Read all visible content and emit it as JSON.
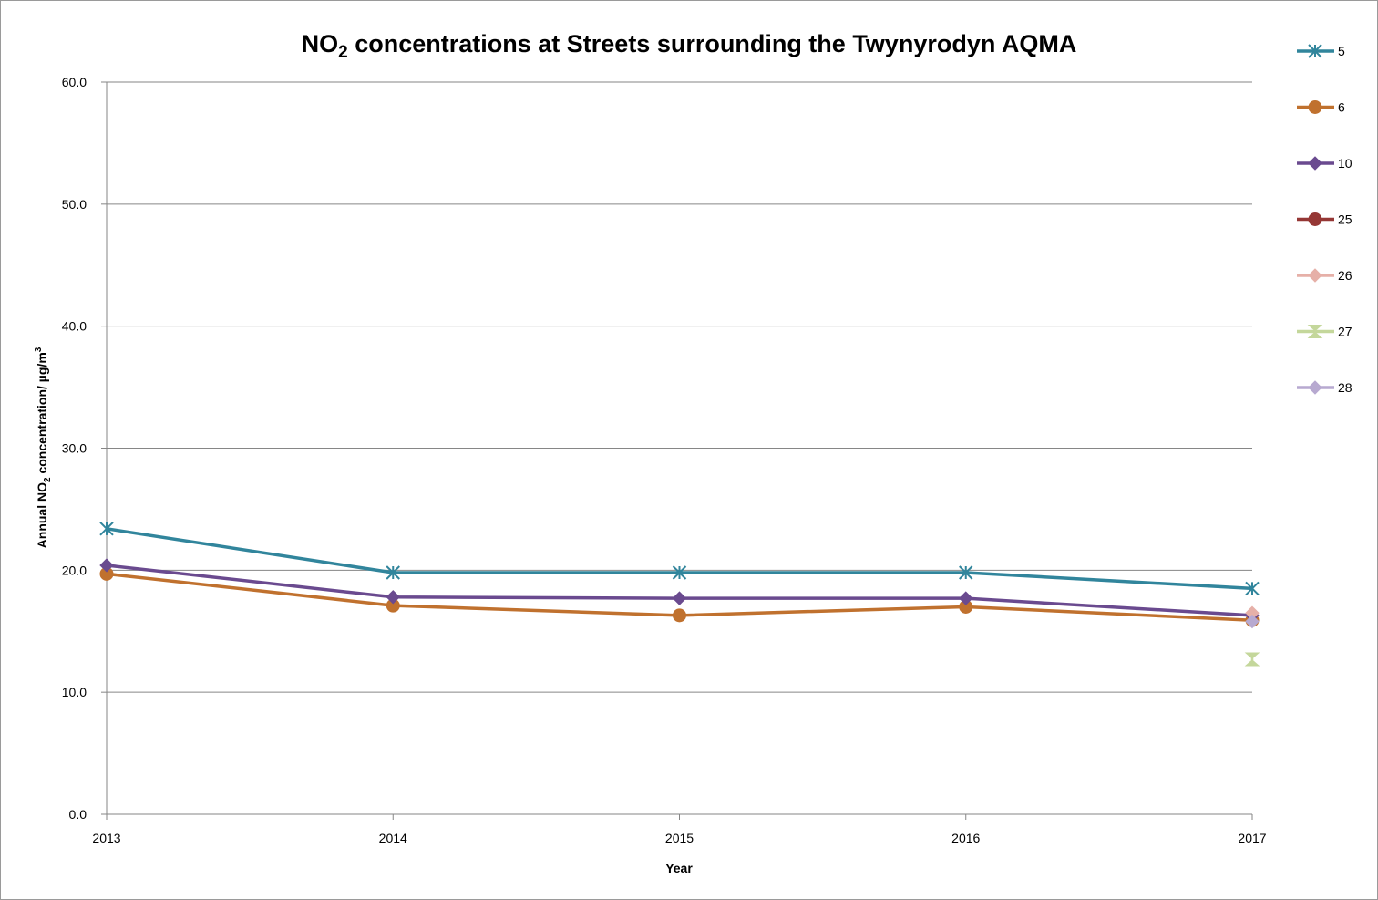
{
  "chart_data": {
    "type": "line",
    "title_main": "NO",
    "title_sub": "2",
    "title_rest": " concentrations at Streets surrounding the Twynyrodyn AQMA",
    "ylabel_main": "Annual NO",
    "ylabel_sub": "2",
    "ylabel_rest": " concentration/ µg/m",
    "ylabel_sup": "3",
    "xlabel": "Year",
    "x": [
      "2013",
      "2014",
      "2015",
      "2016",
      "2017"
    ],
    "y_ticks": [
      "0.0",
      "10.0",
      "20.0",
      "30.0",
      "40.0",
      "50.0",
      "60.0"
    ],
    "ylim": [
      0,
      60
    ],
    "grid": true,
    "legend_position": "right",
    "series": [
      {
        "name": "5",
        "color": "#31859C",
        "marker": "x-star",
        "values": [
          23.4,
          19.8,
          19.8,
          19.8,
          18.5
        ]
      },
      {
        "name": "6",
        "color": "#C0712E",
        "marker": "circle",
        "values": [
          19.7,
          17.1,
          16.3,
          17.0,
          15.9
        ]
      },
      {
        "name": "10",
        "color": "#6A4A8F",
        "marker": "diamond",
        "values": [
          20.4,
          17.8,
          17.7,
          17.7,
          16.3
        ]
      },
      {
        "name": "25",
        "color": "#953735",
        "marker": "circle",
        "values": [
          null,
          null,
          null,
          null,
          null
        ]
      },
      {
        "name": "26",
        "color": "#E6B0A8",
        "marker": "diamond",
        "values": [
          null,
          null,
          null,
          null,
          16.5
        ]
      },
      {
        "name": "27",
        "color": "#C4D79B",
        "marker": "hourglass",
        "values": [
          null,
          null,
          null,
          null,
          12.7
        ]
      },
      {
        "name": "28",
        "color": "#B7A9D0",
        "marker": "diamond",
        "values": [
          null,
          null,
          null,
          null,
          15.8
        ]
      }
    ]
  }
}
